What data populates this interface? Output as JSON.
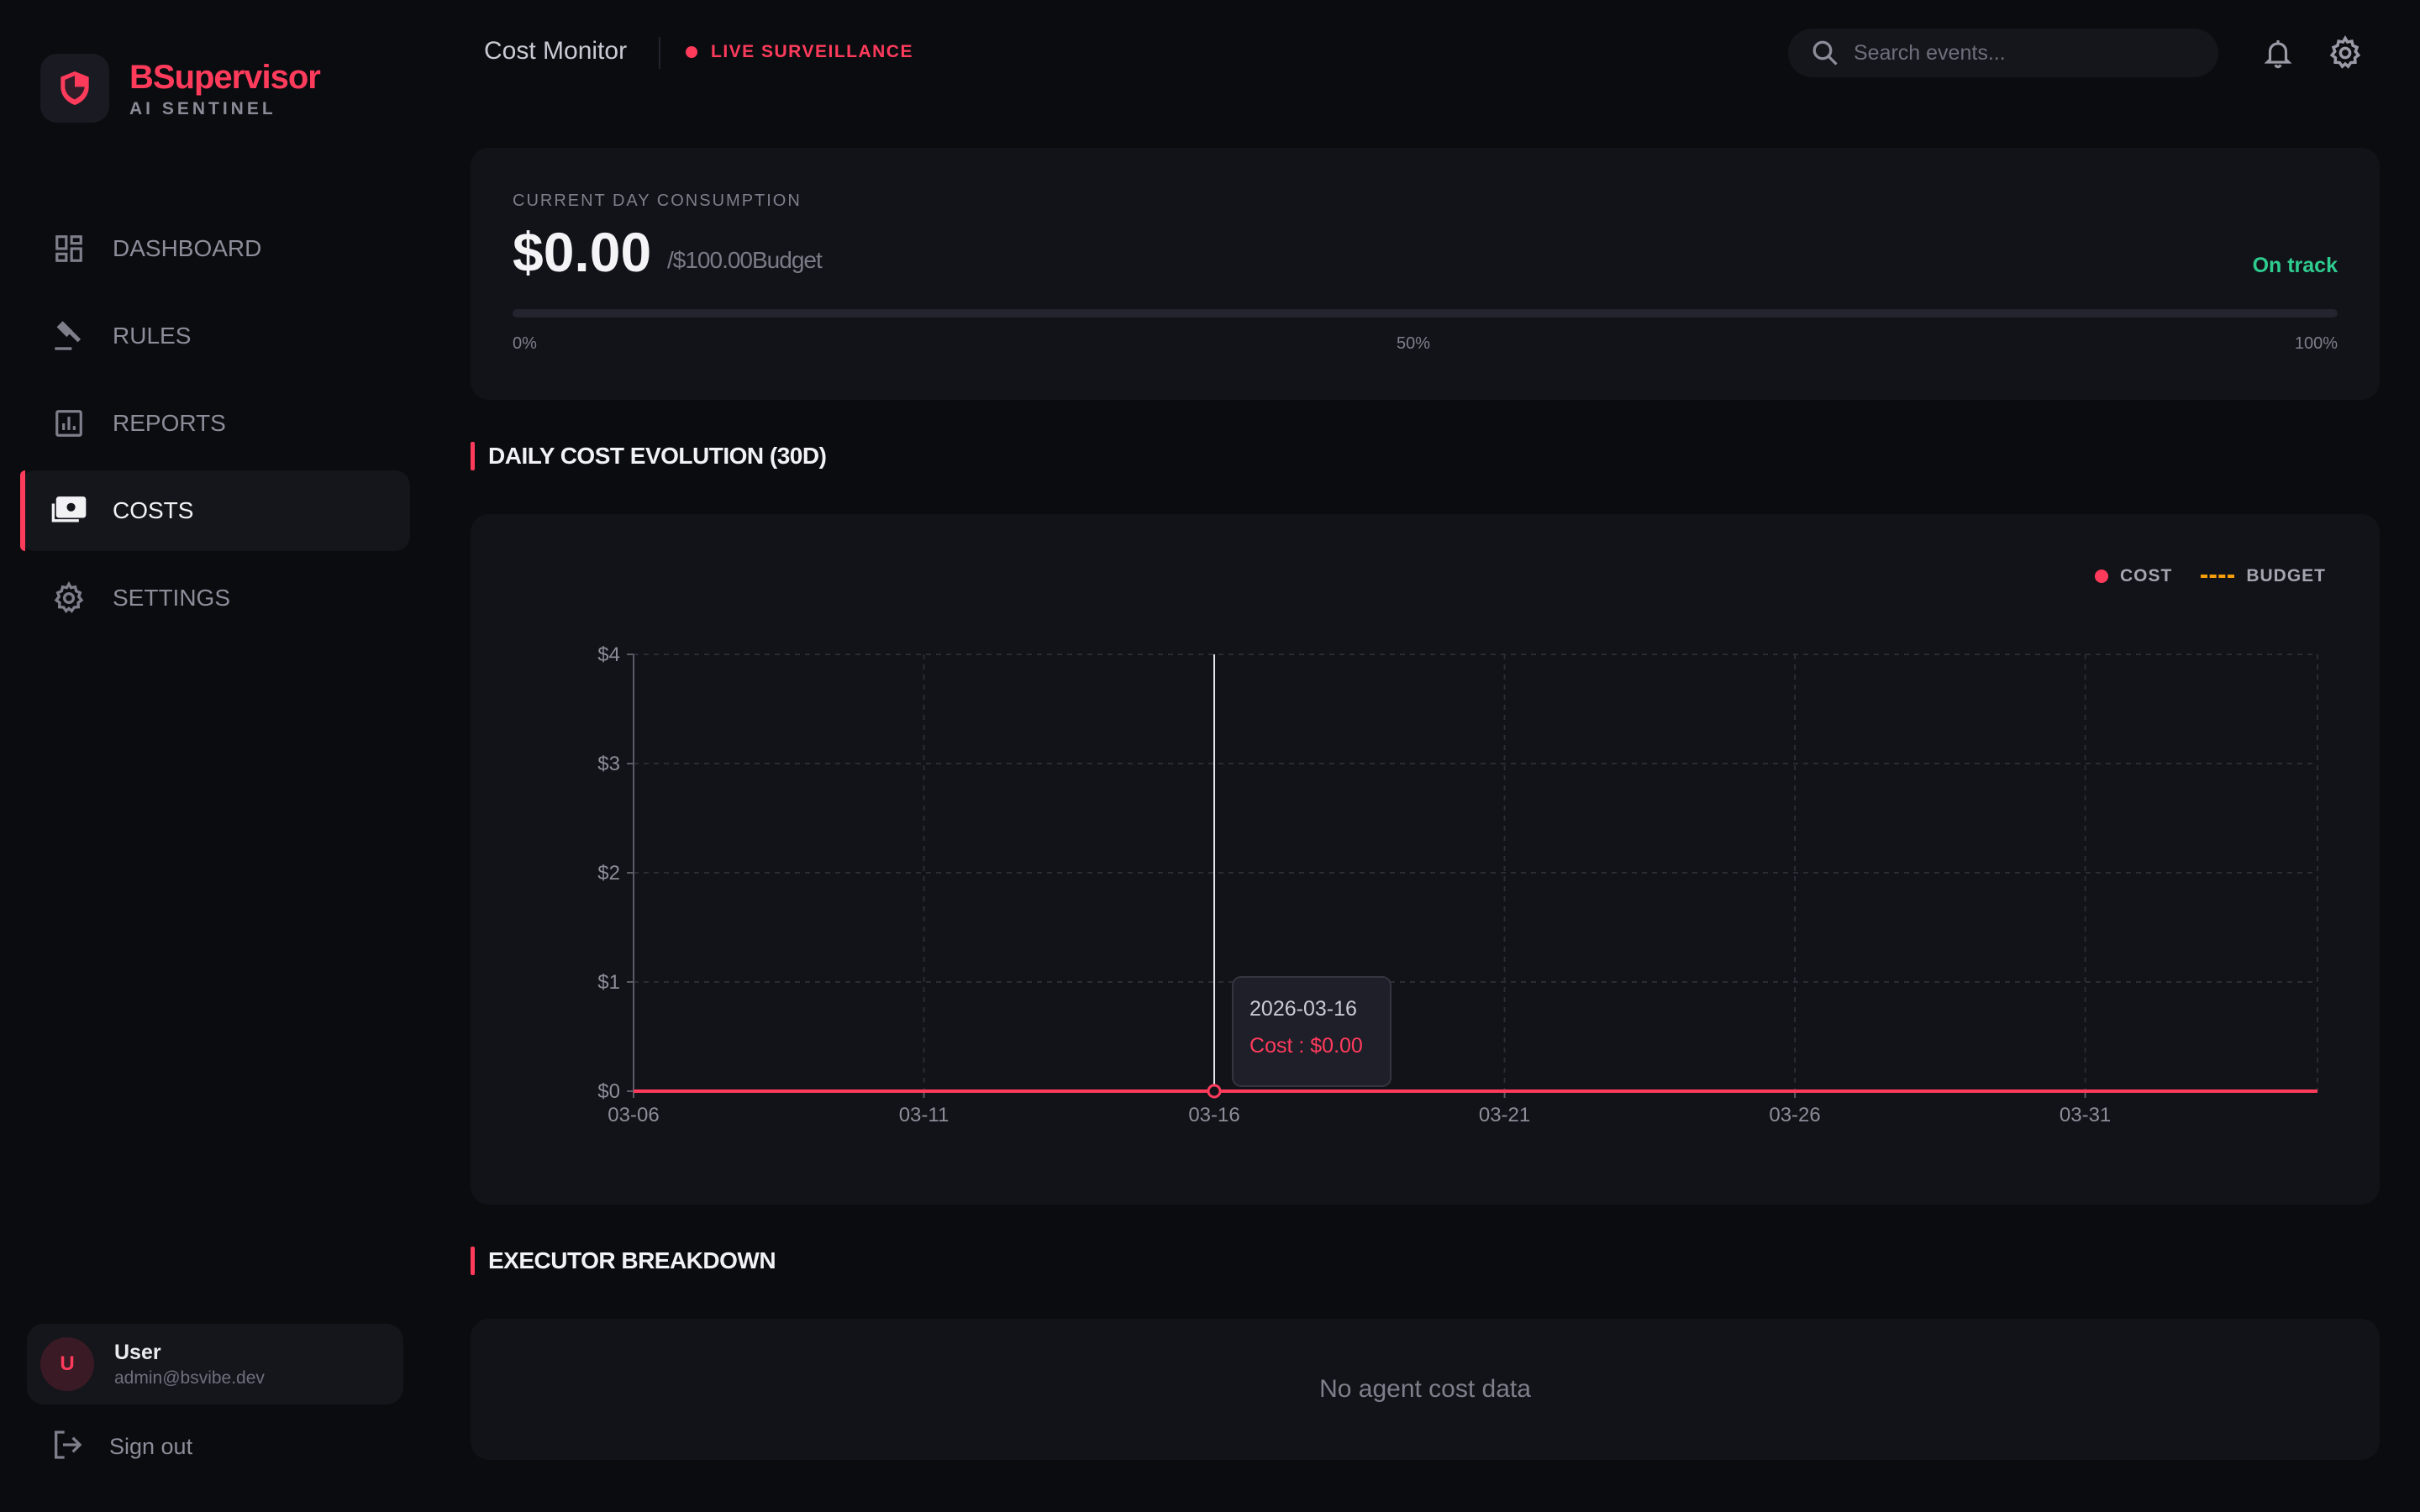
{
  "brand": {
    "name": "BSupervisor",
    "subtitle": "AI SENTINEL"
  },
  "sidebar": {
    "items": [
      {
        "label": "DASHBOARD",
        "icon": "dashboard-icon",
        "active": false
      },
      {
        "label": "RULES",
        "icon": "gavel-icon",
        "active": false
      },
      {
        "label": "REPORTS",
        "icon": "reports-icon",
        "active": false
      },
      {
        "label": "COSTS",
        "icon": "costs-icon",
        "active": true
      },
      {
        "label": "SETTINGS",
        "icon": "gear-icon",
        "active": false
      }
    ],
    "user": {
      "initial": "U",
      "name": "User",
      "email": "admin@bsvibe.dev"
    },
    "signout_label": "Sign out"
  },
  "header": {
    "title": "Cost Monitor",
    "live_label": "LIVE SURVEILLANCE",
    "search_placeholder": "Search events..."
  },
  "budget": {
    "label": "CURRENT DAY CONSUMPTION",
    "amount": "$0.00",
    "budget_text": "/$100.00Budget",
    "status": "On track",
    "progress_fraction": 0,
    "ticks": [
      "0%",
      "50%",
      "100%"
    ]
  },
  "sections": {
    "chart_title": "DAILY COST EVOLUTION (30D)",
    "breakdown_title": "EXECUTOR BREAKDOWN",
    "breakdown_empty": "No agent cost data"
  },
  "colors": {
    "accent": "#ff3b5c",
    "budget_line": "#f59e0b",
    "status_ok": "#2ecc8f"
  },
  "chart_data": {
    "type": "line",
    "legend": [
      "COST",
      "BUDGET"
    ],
    "legend_position": "top-right",
    "grid": true,
    "x_start": "2026-03-06",
    "x_end": "2026-04-04",
    "x_ticks": [
      "03-06",
      "03-11",
      "03-16",
      "03-21",
      "03-26",
      "03-31"
    ],
    "y_ticks": [
      "$0",
      "$1",
      "$2",
      "$3",
      "$4"
    ],
    "ylim": [
      0,
      4
    ],
    "series": [
      {
        "name": "COST",
        "color": "#ff3b5c",
        "x_range": [
          "2026-03-06",
          "2026-04-04"
        ],
        "value": 0
      }
    ],
    "tooltip": {
      "date": "2026-03-16",
      "label": "Cost : $0.00",
      "x": "2026-03-16",
      "y": 0
    }
  }
}
